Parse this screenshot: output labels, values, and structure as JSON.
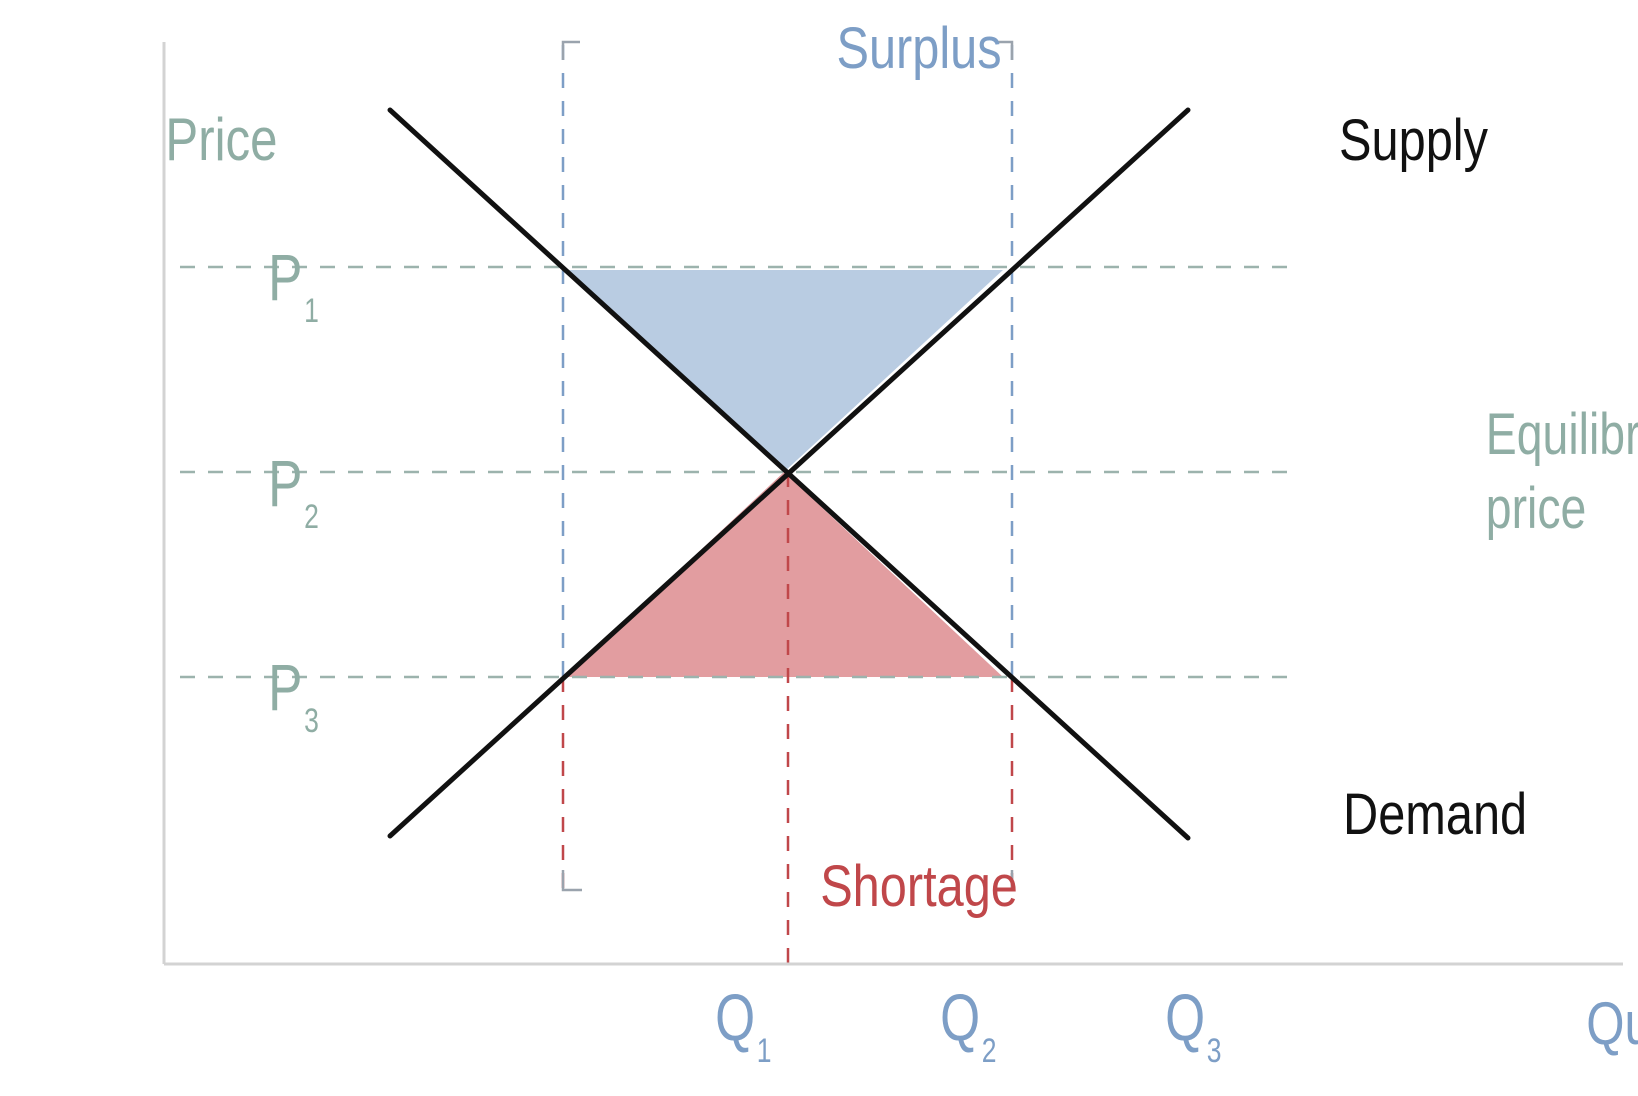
{
  "labels": {
    "y_axis": "Price",
    "x_axis": "Quantity",
    "surplus": "Surplus",
    "shortage": "Shortage",
    "supply": "Supply",
    "demand": "Demand",
    "equilibrium_line1": "Equilibrium",
    "equilibrium_line2": "price"
  },
  "price_ticks": [
    {
      "letter": "P",
      "sub": "1"
    },
    {
      "letter": "P",
      "sub": "2"
    },
    {
      "letter": "P",
      "sub": "3"
    }
  ],
  "quantity_ticks": [
    {
      "letter": "Q",
      "sub": "1"
    },
    {
      "letter": "Q",
      "sub": "2"
    },
    {
      "letter": "Q",
      "sub": "3"
    }
  ],
  "colors": {
    "axis": "#d3d3d3",
    "curve": "#111111",
    "price_text": "#8fada4",
    "quantity_text": "#7d9ec6",
    "surplus_text": "#7d9ec6",
    "shortage_text": "#c0474a",
    "surplus_fill": "#b9cce2",
    "shortage_fill": "#e29da0",
    "price_guide": "#9cb3ad",
    "surplus_guide": "#7d9ec6",
    "shortage_guide": "#c0474a"
  }
}
